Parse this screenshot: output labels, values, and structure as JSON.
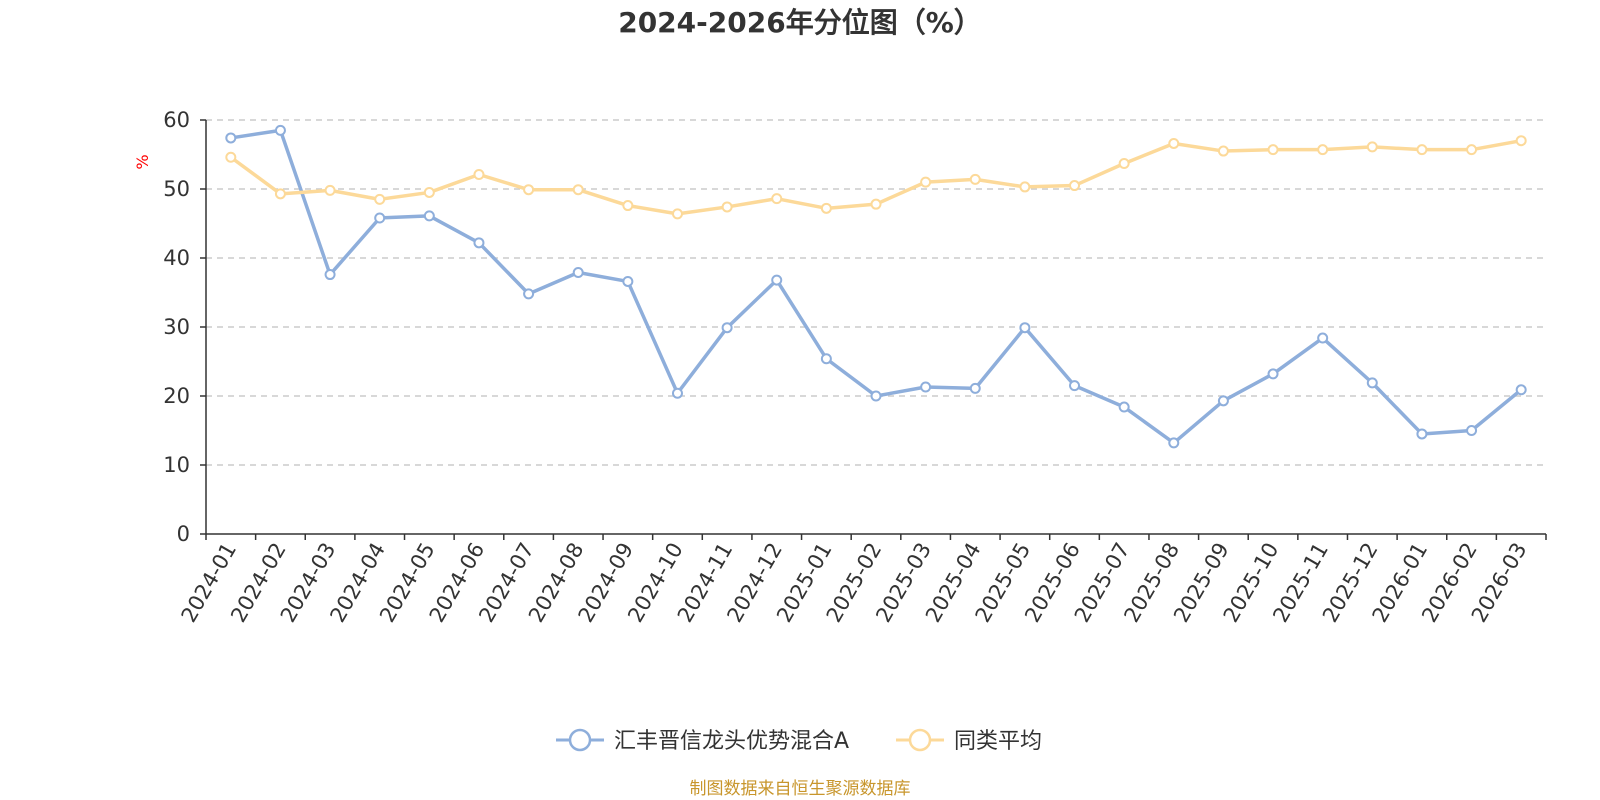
{
  "chart_data": {
    "type": "line",
    "title": "2024-2026年分位图（%）",
    "ylabel": "%",
    "xlabel": "",
    "ylim": [
      0,
      60
    ],
    "yticks": [
      0,
      10,
      20,
      30,
      40,
      50,
      60
    ],
    "grid": true,
    "legend_position": "bottom-center",
    "categories": [
      "2024-01",
      "2024-02",
      "2024-03",
      "2024-04",
      "2024-05",
      "2024-06",
      "2024-07",
      "2024-08",
      "2024-09",
      "2024-10",
      "2024-11",
      "2024-12",
      "2025-01",
      "2025-02",
      "2025-03",
      "2025-04",
      "2025-05",
      "2025-06",
      "2025-07",
      "2025-08",
      "2025-09",
      "2025-10",
      "2025-11",
      "2025-12",
      "2026-01",
      "2026-02",
      "2026-03"
    ],
    "series": [
      {
        "name": "汇丰晋信龙头优势混合A",
        "color": "#8eaedb",
        "values": [
          57.4,
          58.5,
          37.6,
          45.8,
          46.1,
          42.2,
          34.8,
          37.9,
          36.6,
          20.4,
          29.9,
          36.8,
          25.4,
          20.0,
          21.3,
          21.1,
          29.9,
          21.5,
          18.4,
          13.2,
          19.3,
          23.2,
          28.4,
          21.9,
          14.5,
          15.0,
          20.9
        ]
      },
      {
        "name": "同类平均",
        "color": "#fcd999",
        "values": [
          54.6,
          49.3,
          49.8,
          48.5,
          49.5,
          52.1,
          49.9,
          49.9,
          47.6,
          46.4,
          47.4,
          48.6,
          47.2,
          47.8,
          51.0,
          51.4,
          50.3,
          50.5,
          53.7,
          56.6,
          55.5,
          55.7,
          55.7,
          56.1,
          55.7,
          55.7,
          57.0
        ]
      }
    ],
    "source": "制图数据来自恒生聚源数据库",
    "unit_color": "#ff0000",
    "source_color": "#c8962c",
    "axis_color": "#333333",
    "grid_color": "#cccccc"
  }
}
